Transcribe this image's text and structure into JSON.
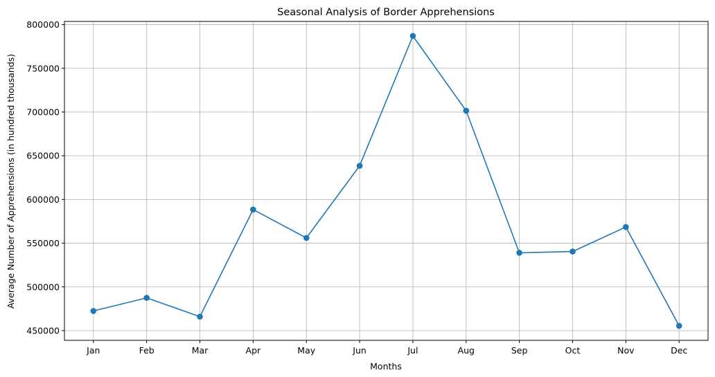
{
  "chart_data": {
    "type": "line",
    "title": "Seasonal Analysis of Border Apprehensions",
    "xlabel": "Months",
    "ylabel": "Average Number of Apprehensions (in hundred thousands)",
    "categories": [
      "Jan",
      "Feb",
      "Mar",
      "Apr",
      "May",
      "Jun",
      "Jul",
      "Aug",
      "Sep",
      "Oct",
      "Nov",
      "Dec"
    ],
    "series": [
      {
        "values": [
          472500,
          487500,
          466000,
          588500,
          556000,
          638500,
          787000,
          701500,
          539000,
          540500,
          568500,
          455500
        ]
      }
    ],
    "yticks": [
      450000,
      500000,
      550000,
      600000,
      650000,
      700000,
      750000,
      800000
    ],
    "ytick_labels": [
      "450000",
      "500000",
      "550000",
      "600000",
      "650000",
      "700000",
      "750000",
      "800000"
    ],
    "ylim": [
      438900,
      803600
    ],
    "grid": true,
    "marker": "circle",
    "colors": {
      "series": "#1f77b4",
      "grid": "#b0b0b0",
      "axis": "#000000"
    }
  }
}
